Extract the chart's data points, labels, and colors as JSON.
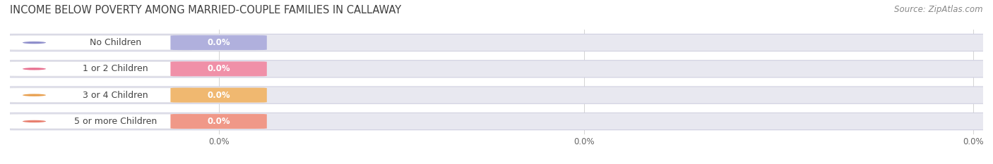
{
  "title": "INCOME BELOW POVERTY AMONG MARRIED-COUPLE FAMILIES IN CALLAWAY",
  "source": "Source: ZipAtlas.com",
  "categories": [
    "No Children",
    "1 or 2 Children",
    "3 or 4 Children",
    "5 or more Children"
  ],
  "values": [
    0.0,
    0.0,
    0.0,
    0.0
  ],
  "bar_colors": [
    "#b0b0dd",
    "#f090a8",
    "#f0b870",
    "#f09888"
  ],
  "dot_colors": [
    "#9090cc",
    "#e87090",
    "#e8a050",
    "#e88070"
  ],
  "track_color": "#e8e8f0",
  "track_edge_color": "#d0d0e0",
  "background_color": "#ffffff",
  "title_fontsize": 10.5,
  "source_fontsize": 8.5,
  "bar_label_fontsize": 8.5,
  "category_fontsize": 9,
  "figsize": [
    14.06,
    2.33
  ]
}
